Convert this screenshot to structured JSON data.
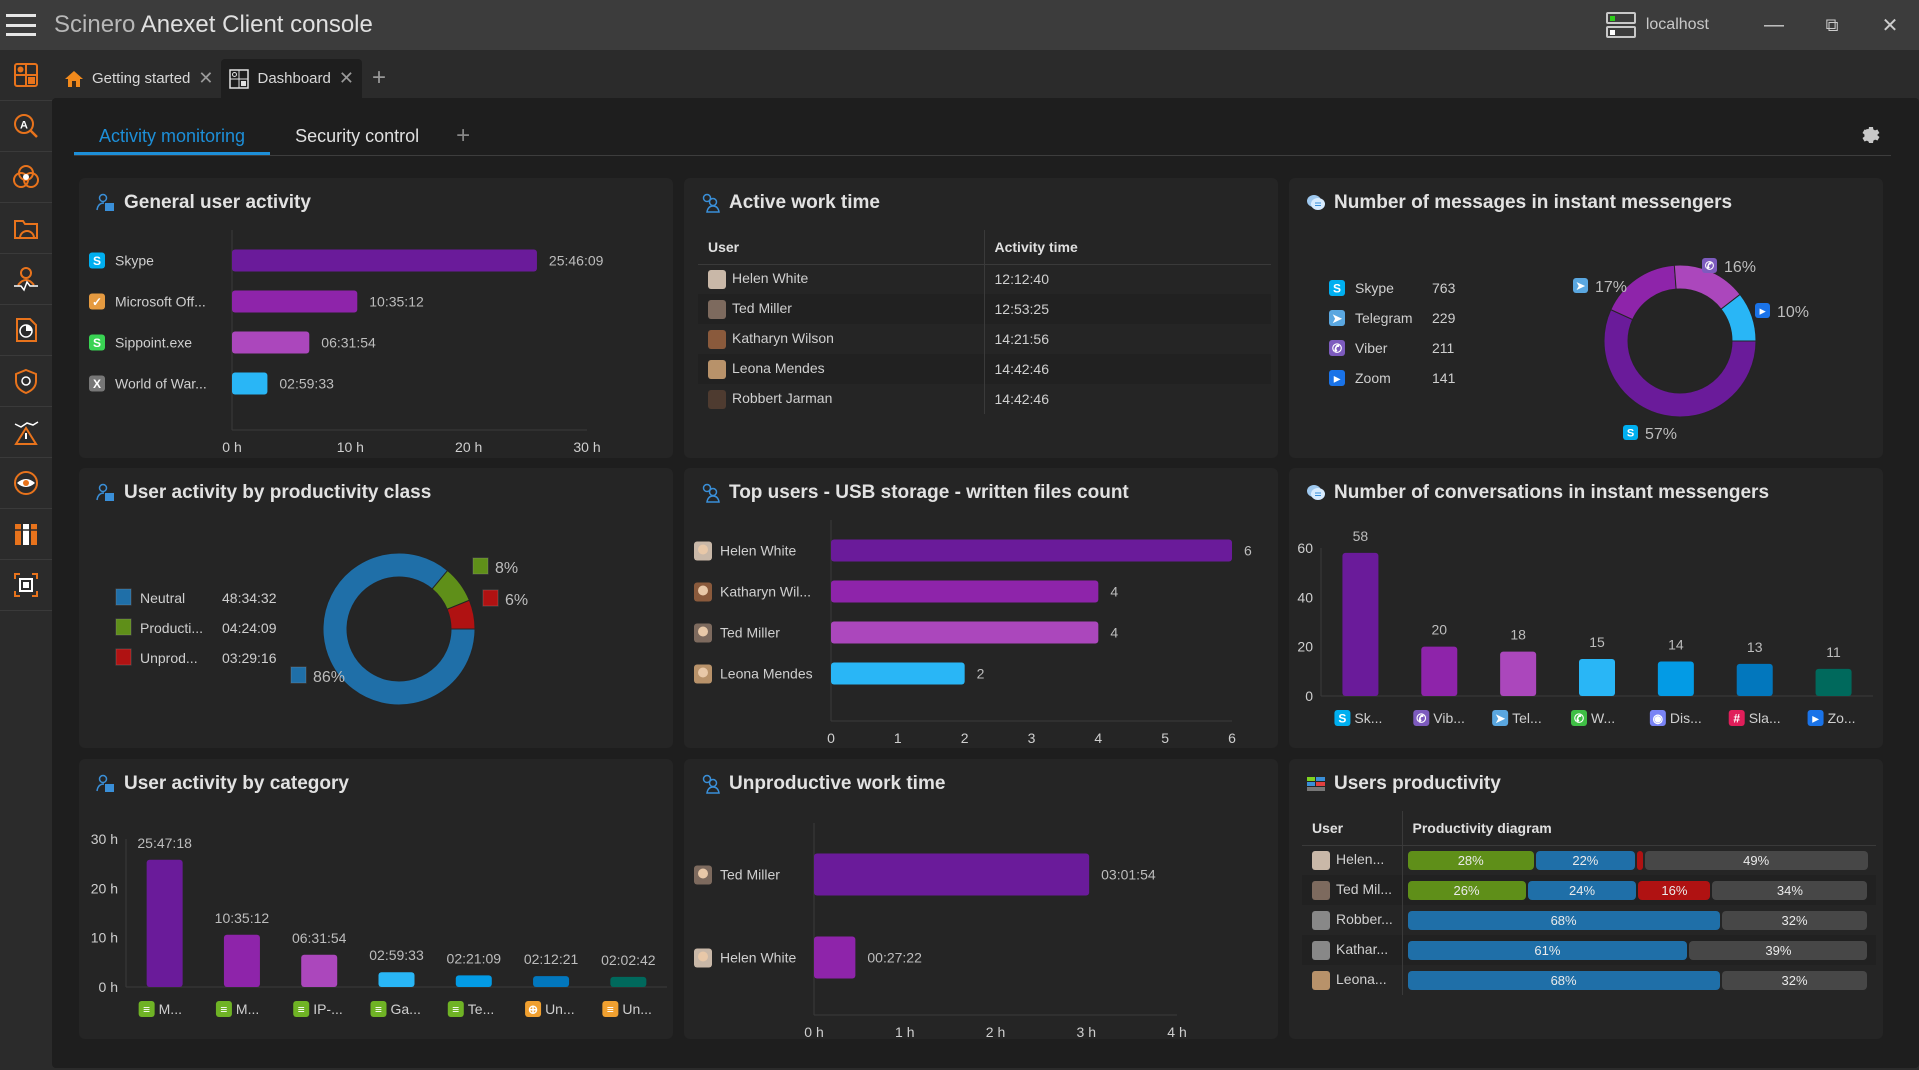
{
  "window": {
    "title_parts": [
      "Scinero",
      "Anexet",
      "Client console"
    ],
    "host": "localhost",
    "minimize_icon": "minimize-icon",
    "restore_icon": "restore-icon",
    "close_icon": "close-icon"
  },
  "sidebar": {
    "items": [
      {
        "name": "dashboard",
        "icon": "dashboard-icon"
      },
      {
        "name": "activity-search",
        "icon": "search-a-icon"
      },
      {
        "name": "categories",
        "icon": "overlap-circles-icon"
      },
      {
        "name": "reports-folder",
        "icon": "folder-gauge-icon"
      },
      {
        "name": "user-activity",
        "icon": "user-pulse-icon"
      },
      {
        "name": "report",
        "icon": "pie-document-icon"
      },
      {
        "name": "security",
        "icon": "shield-gear-icon"
      },
      {
        "name": "alerts",
        "icon": "warning-graph-icon"
      },
      {
        "name": "monitoring",
        "icon": "eye-icon"
      },
      {
        "name": "archives",
        "icon": "binders-icon"
      },
      {
        "name": "screenshots",
        "icon": "screen-capture-icon"
      }
    ]
  },
  "doc_tabs": [
    {
      "label": "Getting started",
      "icon": "home-icon",
      "active": false
    },
    {
      "label": "Dashboard",
      "icon": "dashboard-icon",
      "active": true
    }
  ],
  "sub_tabs": [
    {
      "label": "Activity monitoring",
      "active": true
    },
    {
      "label": "Security control",
      "active": false
    }
  ],
  "colors": {
    "purple_dark": "#6a1b9a",
    "purple": "#8e24aa",
    "purple_light": "#ab47bc",
    "cyan": "#29b6f6",
    "blue": "#039be5",
    "blue_dark": "#0277bd",
    "teal": "#00695c",
    "neutral": "#1f6fa8",
    "productive": "#5f8f19",
    "unproductive": "#b01212",
    "idle": "#474747",
    "accent": "#1d8fd8"
  },
  "panels": {
    "general_activity": {
      "title": "General user activity",
      "chart_data": {
        "type": "bar",
        "orientation": "horizontal",
        "title": "General user activity",
        "categories": [
          "Skype",
          "Microsoft Off...",
          "Sippoint.exe",
          "World of War..."
        ],
        "icons": [
          "skype-icon",
          "outlook-icon",
          "sippoint-icon",
          "wow-icon"
        ],
        "values_hours": [
          25.769,
          10.587,
          6.532,
          2.992
        ],
        "labels": [
          "25:46:09",
          "10:35:12",
          "06:31:54",
          "02:59:33"
        ],
        "xticks": [
          "0 h",
          "10 h",
          "20 h",
          "30 h"
        ],
        "xlim": [
          0,
          30
        ]
      }
    },
    "active_work_time": {
      "title": "Active work time",
      "columns": [
        "User",
        "Activity time"
      ],
      "rows": [
        {
          "user": "Helen White",
          "time": "12:12:40"
        },
        {
          "user": "Ted Miller",
          "time": "12:53:25"
        },
        {
          "user": "Katharyn Wilson",
          "time": "14:21:56"
        },
        {
          "user": "Leona Mendes",
          "time": "14:42:46"
        },
        {
          "user": "Robbert Jarman",
          "time": "14:42:46"
        }
      ]
    },
    "messages": {
      "title": "Number of messages in instant messengers",
      "legend": [
        {
          "name": "Skype",
          "value": "763",
          "icon": "skype-icon"
        },
        {
          "name": "Telegram",
          "value": "229",
          "icon": "telegram-icon"
        },
        {
          "name": "Viber",
          "value": "211",
          "icon": "viber-icon"
        },
        {
          "name": "Zoom",
          "value": "141",
          "icon": "zoom-icon"
        }
      ],
      "chart_data": {
        "type": "pie",
        "donut": true,
        "title": "Number of messages in instant messengers",
        "categories": [
          "Skype",
          "Telegram",
          "Viber",
          "Zoom"
        ],
        "values": [
          763,
          229,
          211,
          141
        ],
        "percent_labels": [
          "57%",
          "17%",
          "16%",
          "10%"
        ]
      }
    },
    "productivity_class": {
      "title": "User activity by productivity class",
      "legend": [
        {
          "name": "Neutral",
          "value": "48:34:32"
        },
        {
          "name": "Producti...",
          "value": "04:24:09"
        },
        {
          "name": "Unprod...",
          "value": "03:29:16"
        }
      ],
      "chart_data": {
        "type": "pie",
        "donut": true,
        "title": "User activity by productivity class",
        "categories": [
          "Neutral",
          "Productive",
          "Unproductive"
        ],
        "values_hours": [
          48.576,
          4.403,
          3.488
        ],
        "percent_labels": [
          "86%",
          "8%",
          "6%"
        ]
      }
    },
    "usb_storage": {
      "title": "Top users - USB storage - written files count",
      "chart_data": {
        "type": "bar",
        "orientation": "horizontal",
        "title": "Top users - USB storage - written files count",
        "categories": [
          "Helen White",
          "Katharyn Wil...",
          "Ted Miller",
          "Leona Mendes"
        ],
        "values": [
          6,
          4,
          4,
          2
        ],
        "xticks": [
          "0",
          "1",
          "2",
          "3",
          "4",
          "5",
          "6"
        ],
        "xlim": [
          0,
          6
        ]
      }
    },
    "conversations": {
      "title": "Number of conversations in instant messengers",
      "chart_data": {
        "type": "bar",
        "title": "Number of conversations in instant messengers",
        "categories": [
          "Sk...",
          "Vib...",
          "Tel...",
          "W...",
          "Dis...",
          "Sla...",
          "Zo..."
        ],
        "icons": [
          "skype-icon",
          "viber-icon",
          "telegram-icon",
          "whatsapp-icon",
          "discord-icon",
          "slack-icon",
          "zoom-icon"
        ],
        "values": [
          58,
          20,
          18,
          15,
          14,
          13,
          11
        ],
        "yticks": [
          "0",
          "20",
          "40",
          "60"
        ],
        "ylim": [
          0,
          60
        ]
      }
    },
    "by_category": {
      "title": "User activity by category",
      "chart_data": {
        "type": "bar",
        "title": "User activity by category",
        "categories": [
          "M...",
          "M...",
          "IP-...",
          "Ga...",
          "Te...",
          "Un...",
          "Un..."
        ],
        "icons": [
          "category-icon",
          "category-icon",
          "category-icon",
          "category-icon",
          "category-icon",
          "web-icon",
          "uncategorized-icon"
        ],
        "values_hours": [
          25.788,
          10.587,
          6.532,
          2.992,
          2.353,
          2.206,
          2.045
        ],
        "labels": [
          "25:47:18",
          "10:35:12",
          "06:31:54",
          "02:59:33",
          "02:21:09",
          "02:12:21",
          "02:02:42"
        ],
        "yticks": [
          "0 h",
          "10 h",
          "20 h",
          "30 h"
        ],
        "ylim": [
          0,
          30
        ]
      }
    },
    "unproductive": {
      "title": "Unproductive work time",
      "chart_data": {
        "type": "bar",
        "orientation": "horizontal",
        "title": "Unproductive work time",
        "categories": [
          "Ted Miller",
          "Helen White"
        ],
        "values_hours": [
          3.032,
          0.456
        ],
        "labels": [
          "03:01:54",
          "00:27:22"
        ],
        "xticks": [
          "0 h",
          "1 h",
          "2 h",
          "3 h",
          "4 h"
        ],
        "xlim": [
          0,
          4
        ]
      }
    },
    "users_productivity": {
      "title": "Users productivity",
      "columns": [
        "User",
        "Productivity diagram"
      ],
      "rows": [
        {
          "user": "Helen...",
          "segments": [
            {
              "kind": "productive",
              "pct": 28,
              "label": "28%"
            },
            {
              "kind": "neutral",
              "pct": 22,
              "label": "22%"
            },
            {
              "kind": "unproductive",
              "pct": 1,
              "label": ""
            },
            {
              "kind": "idle",
              "pct": 49,
              "label": "49%"
            }
          ]
        },
        {
          "user": "Ted Mil...",
          "segments": [
            {
              "kind": "productive",
              "pct": 26,
              "label": "26%"
            },
            {
              "kind": "neutral",
              "pct": 24,
              "label": "24%"
            },
            {
              "kind": "unproductive",
              "pct": 16,
              "label": "16%"
            },
            {
              "kind": "idle",
              "pct": 34,
              "label": "34%"
            }
          ]
        },
        {
          "user": "Robber...",
          "segments": [
            {
              "kind": "neutral",
              "pct": 68,
              "label": "68%"
            },
            {
              "kind": "idle",
              "pct": 32,
              "label": "32%"
            }
          ]
        },
        {
          "user": "Kathar...",
          "segments": [
            {
              "kind": "neutral",
              "pct": 61,
              "label": "61%"
            },
            {
              "kind": "idle",
              "pct": 39,
              "label": "39%"
            }
          ]
        },
        {
          "user": "Leona...",
          "segments": [
            {
              "kind": "neutral",
              "pct": 68,
              "label": "68%"
            },
            {
              "kind": "idle",
              "pct": 32,
              "label": "32%"
            }
          ]
        }
      ]
    }
  }
}
